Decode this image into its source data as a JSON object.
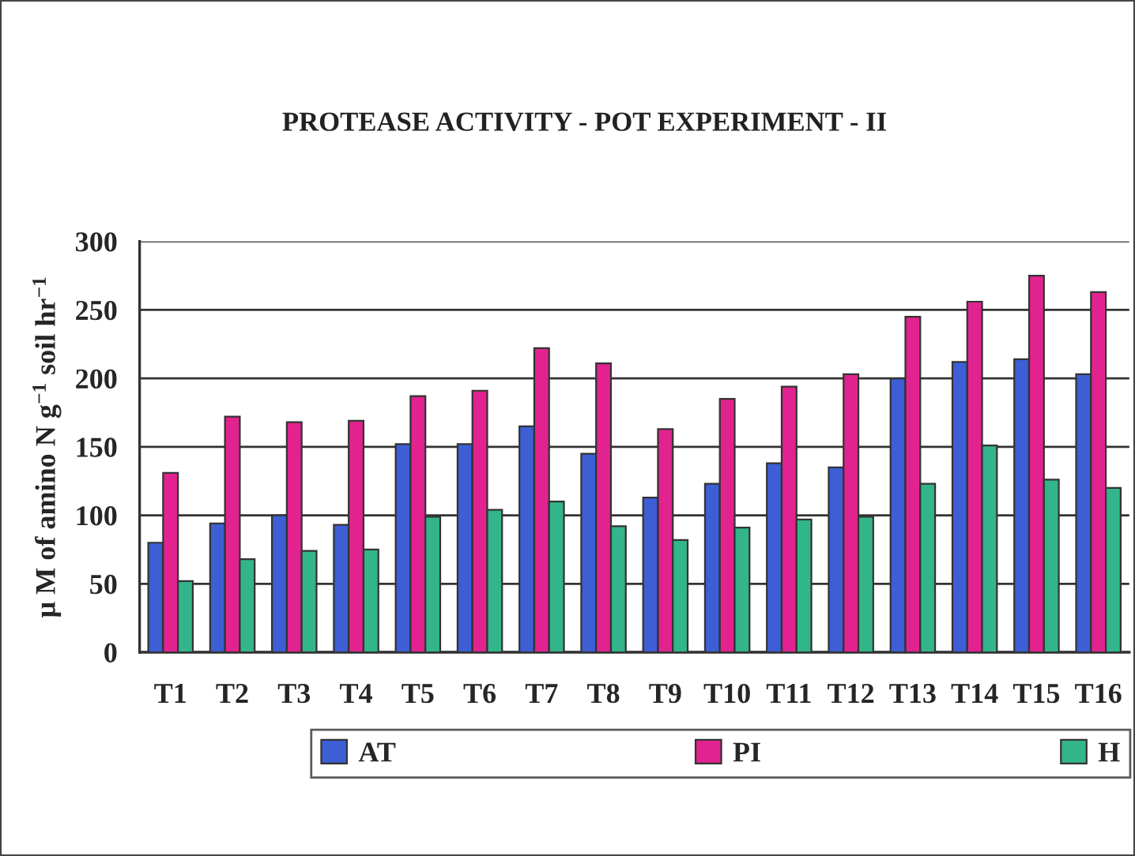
{
  "chart_data": {
    "type": "bar",
    "title": "PROTEASE ACTIVITY - POT EXPERIMENT - II",
    "ylabel": "μ M of amino N g$^{−1}$ soil hr$^{−1}$",
    "categories": [
      "T1",
      "T2",
      "T3",
      "T4",
      "T5",
      "T6",
      "T7",
      "T8",
      "T9",
      "T10",
      "T11",
      "T12",
      "T13",
      "T14",
      "T15",
      "T16"
    ],
    "series": [
      {
        "name": "AT",
        "color": "#3d5ed4",
        "values": [
          80,
          94,
          100,
          93,
          152,
          152,
          165,
          145,
          113,
          123,
          138,
          135,
          200,
          212,
          214,
          203
        ]
      },
      {
        "name": "PI",
        "color": "#e2238f",
        "values": [
          131,
          172,
          168,
          169,
          187,
          191,
          222,
          211,
          163,
          185,
          194,
          203,
          245,
          256,
          275,
          263
        ]
      },
      {
        "name": "H",
        "color": "#33b58b",
        "values": [
          52,
          68,
          74,
          75,
          99,
          104,
          110,
          92,
          82,
          91,
          97,
          99,
          123,
          151,
          126,
          120
        ]
      }
    ],
    "ylim": [
      0,
      300
    ],
    "yticks": [
      0,
      50,
      100,
      150,
      200,
      250,
      300
    ],
    "grid": "y",
    "legend": "bottom"
  }
}
